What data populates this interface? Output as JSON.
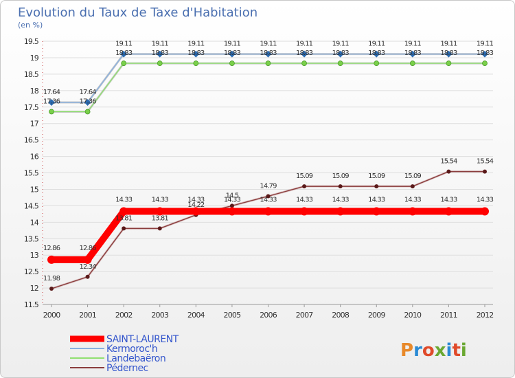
{
  "chart_data": {
    "type": "line",
    "title": "Evolution du Taux de Taxe d'Habitation",
    "subtitle": "(en %)",
    "x": [
      "2000",
      "2001",
      "2002",
      "2003",
      "2004",
      "2005",
      "2006",
      "2007",
      "2008",
      "2009",
      "2010",
      "2011",
      "2012"
    ],
    "ylim": [
      11.5,
      19.5
    ],
    "yticks": [
      "11.5",
      "12",
      "12.5",
      "13",
      "13.5",
      "14",
      "14.5",
      "15",
      "15.5",
      "16",
      "16.5",
      "17",
      "17.5",
      "18",
      "18.5",
      "19",
      "19.5"
    ],
    "grid": "horizontal",
    "legend_position": "bottom-left",
    "series": [
      {
        "name": "SAINT-LAURENT",
        "color": "#ff0000",
        "values": [
          12.86,
          12.86,
          14.33,
          14.33,
          14.33,
          14.33,
          14.33,
          14.33,
          14.33,
          14.33,
          14.33,
          14.33,
          14.33
        ],
        "labels": [
          "12.86",
          "12.86",
          "14.33",
          "14.33",
          "14.33",
          "14.33",
          "14.33",
          "14.33",
          "14.33",
          "14.33",
          "14.33",
          "14.33",
          "14.33"
        ]
      },
      {
        "name": "Kermoroc'h",
        "color": "#88b0e0",
        "values": [
          17.64,
          17.64,
          19.11,
          19.11,
          19.11,
          19.11,
          19.11,
          19.11,
          19.11,
          19.11,
          19.11,
          19.11,
          19.11
        ],
        "labels": [
          "17.64",
          "17.64",
          "19.11",
          "19.11",
          "19.11",
          "19.11",
          "19.11",
          "19.11",
          "19.11",
          "19.11",
          "19.11",
          "19.11",
          "19.11"
        ]
      },
      {
        "name": "Landebaëron",
        "color": "#90e070",
        "values": [
          17.36,
          17.36,
          18.83,
          18.83,
          18.83,
          18.83,
          18.83,
          18.83,
          18.83,
          18.83,
          18.83,
          18.83,
          18.83
        ],
        "labels": [
          "17.36",
          "17.36",
          "18.83",
          "18.83",
          "18.83",
          "18.83",
          "18.83",
          "18.83",
          "18.83",
          "18.83",
          "18.83",
          "18.83",
          "18.83"
        ]
      },
      {
        "name": "Pédernec",
        "color": "#8a3c3c",
        "values": [
          11.98,
          12.34,
          13.81,
          13.81,
          14.22,
          14.5,
          14.79,
          15.09,
          15.09,
          15.09,
          15.09,
          15.54,
          15.54
        ],
        "labels": [
          "11.98",
          "12.34",
          "13.81",
          "13.81",
          "14.22",
          "14.5",
          "14.79",
          "15.09",
          "15.09",
          "15.09",
          "15.09",
          "15.54",
          "15.54"
        ]
      }
    ]
  },
  "logo": {
    "text": "Proxiti",
    "colors": [
      "#e8892a",
      "#2a8ad4",
      "#e04a2a",
      "#6aa832",
      "#2a8ad4",
      "#e04a2a",
      "#6aa832"
    ]
  }
}
